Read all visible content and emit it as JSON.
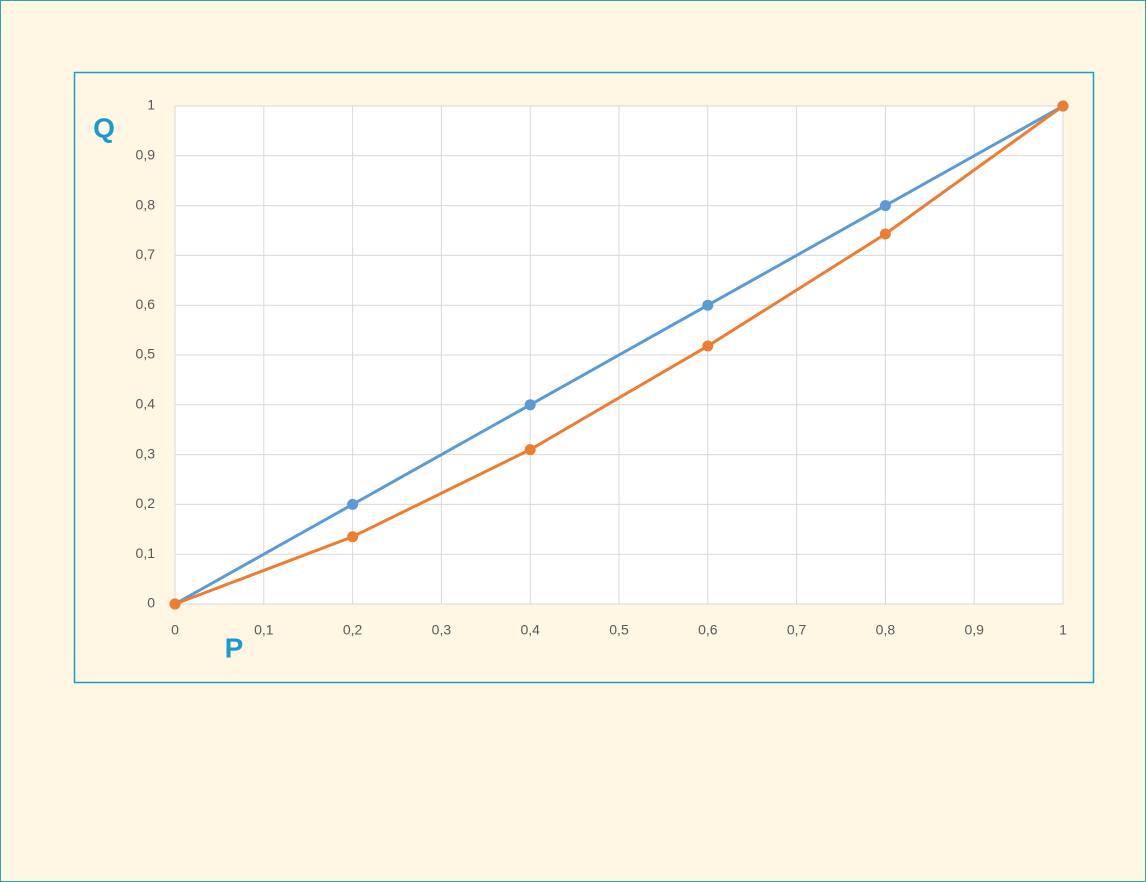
{
  "chart_data": {
    "type": "line",
    "x_label": "P",
    "y_label": "Q",
    "x": [
      0,
      0.2,
      0.4,
      0.6,
      0.8,
      1
    ],
    "series": [
      {
        "color": "#5b9bd5",
        "values": [
          0,
          0.2,
          0.4,
          0.6,
          0.8,
          1
        ]
      },
      {
        "color": "#ed7d31",
        "values": [
          0,
          0.135,
          0.31,
          0.518,
          0.743,
          1
        ]
      }
    ],
    "xlim": [
      0,
      1
    ],
    "ylim": [
      0,
      1
    ],
    "xticks": [
      0,
      {
        "value": 0.1,
        "label": "0,1"
      },
      {
        "value": 0.2,
        "label": "0,2"
      },
      {
        "value": 0.3,
        "label": "0,3"
      },
      {
        "value": 0.4,
        "label": "0,4"
      },
      {
        "value": 0.5,
        "label": "0,5"
      },
      {
        "value": 0.6,
        "label": "0,6"
      },
      {
        "value": 0.7,
        "label": "0,7"
      },
      {
        "value": 0.8,
        "label": "0,8"
      },
      {
        "value": 0.9,
        "label": "0,9"
      },
      1
    ],
    "yticks": [
      0,
      {
        "value": 0.1,
        "label": "0,1"
      },
      {
        "value": 0.2,
        "label": "0,2"
      },
      {
        "value": 0.3,
        "label": "0,3"
      },
      {
        "value": 0.4,
        "label": "0,4"
      },
      {
        "value": 0.5,
        "label": "0,5"
      },
      {
        "value": 0.6,
        "label": "0,6"
      },
      {
        "value": 0.7,
        "label": "0,7"
      },
      {
        "value": 0.8,
        "label": "0,8"
      },
      {
        "value": 0.9,
        "label": "0,9"
      },
      1
    ],
    "grid": true
  }
}
